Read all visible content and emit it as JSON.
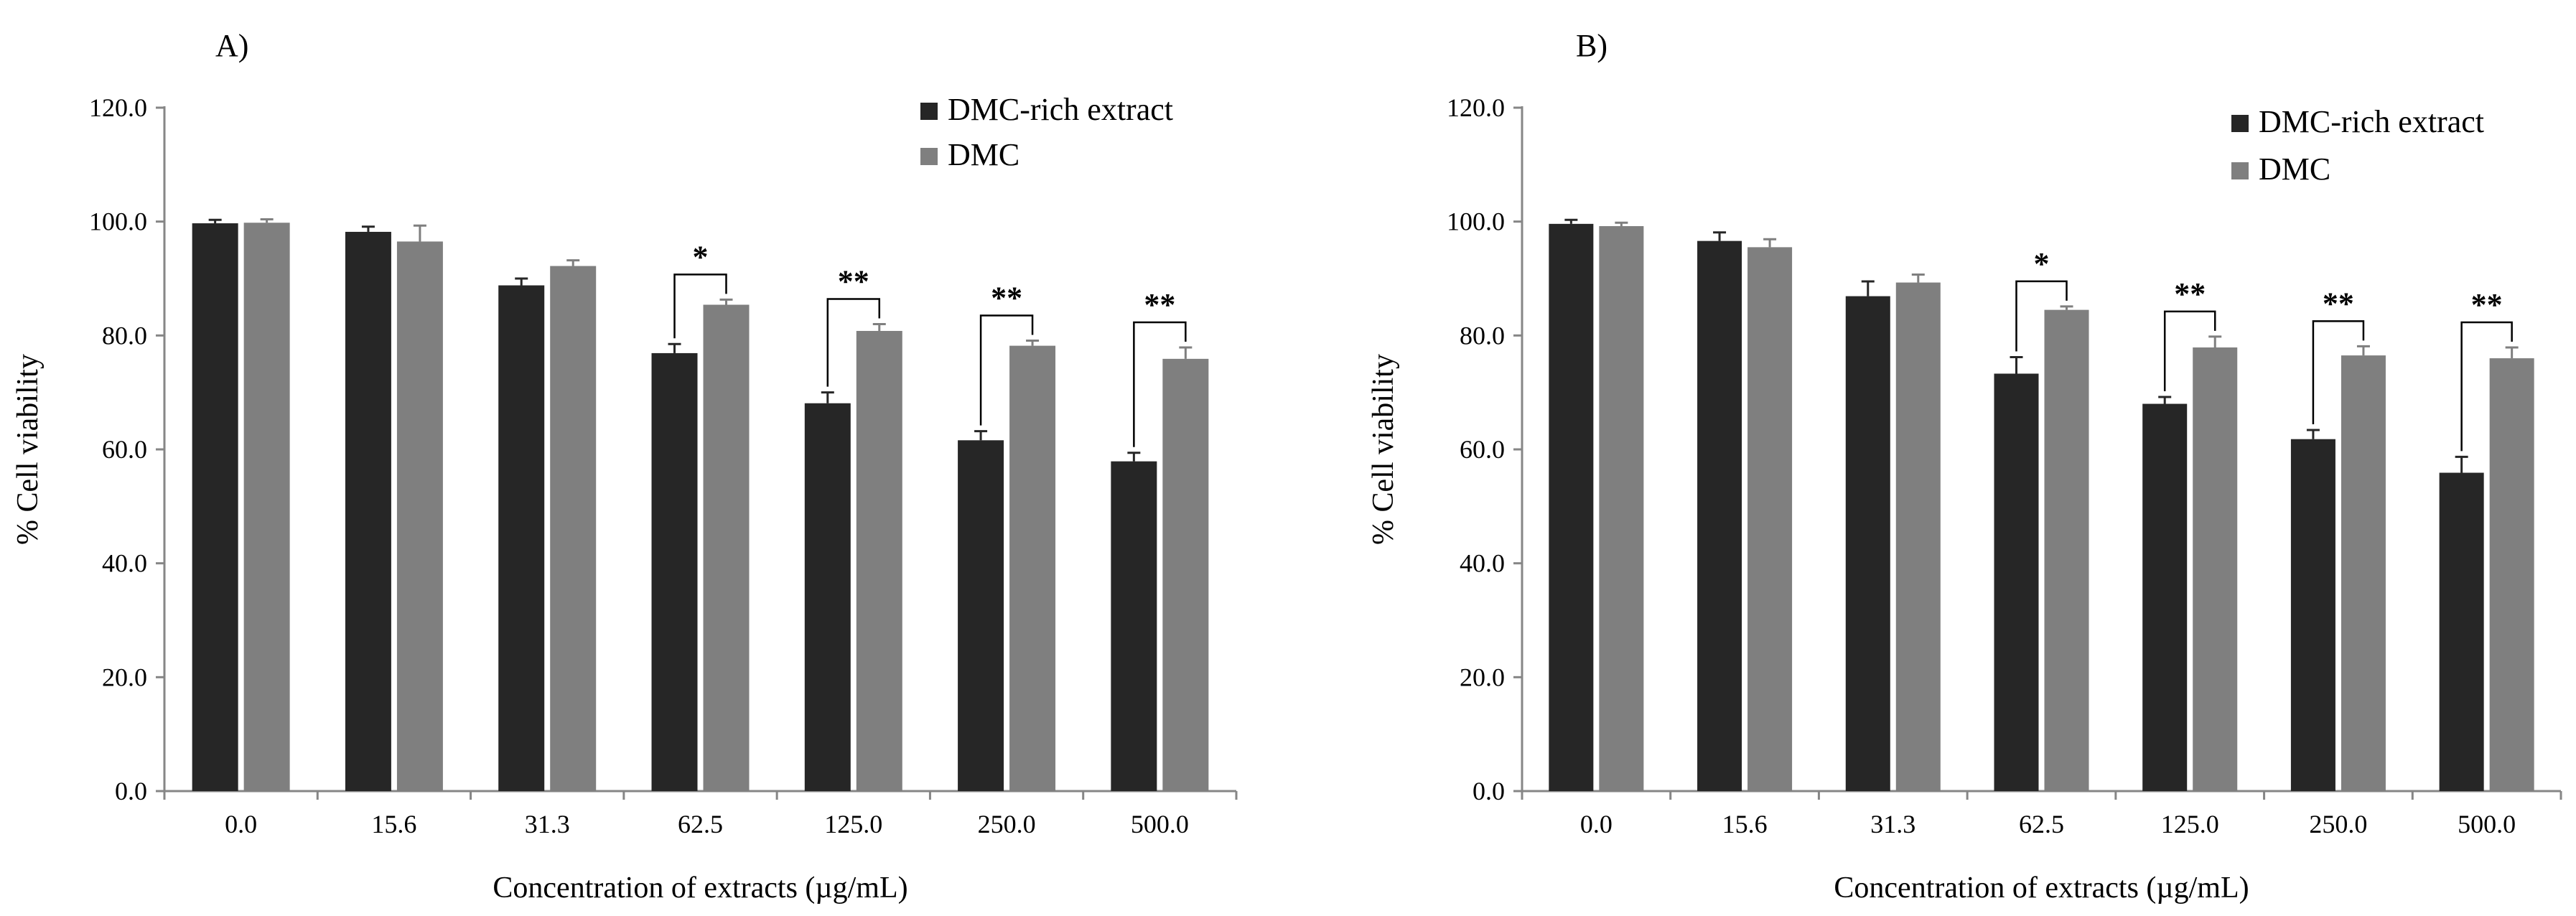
{
  "figure": {
    "panels": [
      "A)",
      "B)"
    ]
  },
  "colors": {
    "extract": "#262626",
    "dmc": "#7f7f7f",
    "axis": "#868686",
    "bracket": "#000000"
  },
  "chart_data": [
    {
      "type": "bar",
      "panel_label": "A)",
      "title": "",
      "xlabel": "Concentration of extracts (µg/mL)",
      "ylabel": "% Cell viability",
      "ylim": [
        0,
        120
      ],
      "yticks": [
        "0.0",
        "20.0",
        "40.0",
        "60.0",
        "80.0",
        "100.0",
        "120.0"
      ],
      "categories": [
        "0.0",
        "15.6",
        "31.3",
        "62.5",
        "125.0",
        "250.0",
        "500.0"
      ],
      "legend_position": "top-right",
      "series": [
        {
          "name": "DMC-rich extract",
          "values": [
            99.7,
            98.2,
            88.8,
            76.9,
            68.1,
            61.6,
            57.9
          ],
          "errors": [
            0.6,
            0.9,
            1.2,
            1.6,
            1.9,
            1.6,
            1.5
          ]
        },
        {
          "name": "DMC",
          "values": [
            99.8,
            96.5,
            92.2,
            85.4,
            80.8,
            78.2,
            75.9
          ],
          "errors": [
            0.6,
            2.8,
            1.0,
            0.9,
            1.2,
            0.9,
            2.0
          ]
        }
      ],
      "significance": [
        "",
        "",
        "",
        "*",
        "**",
        "**",
        "**"
      ]
    },
    {
      "type": "bar",
      "panel_label": "B)",
      "title": "",
      "xlabel": "Concentration of extracts (µg/mL)",
      "ylabel": "% Cell viability",
      "ylim": [
        0,
        120
      ],
      "yticks": [
        "0.0",
        "20.0",
        "40.0",
        "60.0",
        "80.0",
        "100.0",
        "120.0"
      ],
      "categories": [
        "0.0",
        "15.6",
        "31.3",
        "62.5",
        "125.0",
        "250.0",
        "500.0"
      ],
      "legend_position": "top-right",
      "series": [
        {
          "name": "DMC-rich extract",
          "values": [
            99.6,
            96.6,
            86.9,
            73.3,
            68.0,
            61.8,
            55.9
          ],
          "errors": [
            0.7,
            1.5,
            2.6,
            2.9,
            1.2,
            1.6,
            2.8
          ]
        },
        {
          "name": "DMC",
          "values": [
            99.2,
            95.5,
            89.3,
            84.5,
            77.9,
            76.5,
            76.0
          ],
          "errors": [
            0.6,
            1.4,
            1.4,
            0.6,
            1.9,
            1.6,
            1.9
          ]
        }
      ],
      "significance": [
        "",
        "",
        "",
        "*",
        "**",
        "**",
        "**"
      ]
    }
  ]
}
